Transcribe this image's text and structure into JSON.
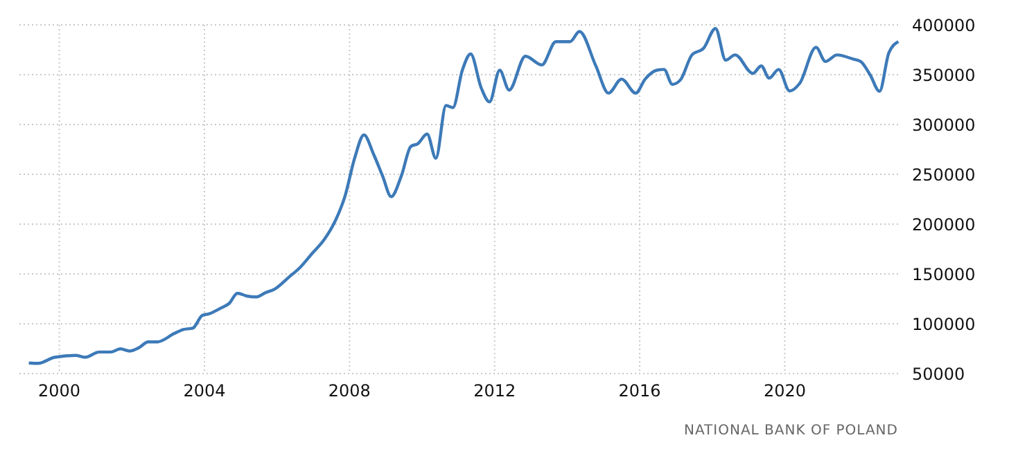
{
  "chart_data": {
    "type": "line",
    "x": [
      1999.16,
      1999.42,
      1999.87,
      2000.45,
      2000.71,
      2001.1,
      2001.42,
      2001.68,
      2001.94,
      2002.2,
      2002.45,
      2002.71,
      2003.17,
      2003.42,
      2003.68,
      2003.94,
      2004.13,
      2004.46,
      2004.68,
      2004.91,
      2005.17,
      2005.43,
      2005.69,
      2005.94,
      2006.33,
      2006.65,
      2006.98,
      2007.3,
      2007.62,
      2007.88,
      2008.14,
      2008.4,
      2008.66,
      2008.91,
      2009.15,
      2009.43,
      2009.69,
      2009.88,
      2010.14,
      2010.38,
      2010.66,
      2010.85,
      2011.11,
      2011.34,
      2011.63,
      2011.86,
      2012.14,
      2012.4,
      2012.85,
      2013.3,
      2013.69,
      2014.08,
      2014.34,
      2014.79,
      2015.14,
      2015.5,
      2015.89,
      2016.15,
      2016.47,
      2016.67,
      2016.9,
      2017.12,
      2017.44,
      2017.76,
      2018.09,
      2018.37,
      2018.63,
      2019.12,
      2019.35,
      2019.57,
      2019.83,
      2020.13,
      2020.41,
      2020.86,
      2021.12,
      2021.44,
      2021.9,
      2022.09,
      2022.35,
      2022.61,
      2022.87,
      2023.13
    ],
    "series": [
      {
        "color": "#3d7ab8",
        "values": [
          60600,
          60200,
          66300,
          68200,
          66300,
          71600,
          71600,
          74800,
          72600,
          76100,
          81800,
          81800,
          90200,
          94200,
          95500,
          108300,
          110000,
          115900,
          120300,
          130600,
          127800,
          126900,
          131300,
          134800,
          146800,
          157000,
          171000,
          184300,
          204200,
          228600,
          266100,
          289600,
          270500,
          248500,
          227600,
          248500,
          278000,
          280700,
          290400,
          266100,
          319100,
          316900,
          354500,
          370800,
          336800,
          322700,
          354500,
          334600,
          368600,
          359800,
          383200,
          383200,
          393400,
          358900,
          331500,
          345600,
          331500,
          345600,
          354500,
          355300,
          340300,
          344700,
          369900,
          376500,
          396400,
          364600,
          369900,
          351300,
          358900,
          346600,
          355300,
          333700,
          341300,
          377500,
          363300,
          369900,
          365500,
          363300,
          350000,
          333300,
          372200,
          383200
        ]
      }
    ],
    "xlim": [
      1998.9,
      2023.2
    ],
    "xticks": [
      2000,
      2004,
      2008,
      2012,
      2016,
      2020
    ],
    "ylim": [
      50000,
      400000
    ],
    "yticks": [
      50000,
      100000,
      150000,
      200000,
      250000,
      300000,
      350000,
      400000
    ],
    "grid": true,
    "line_style": "solid",
    "marker": "none",
    "annotations": [
      "NATIONAL BANK OF POLAND"
    ]
  }
}
